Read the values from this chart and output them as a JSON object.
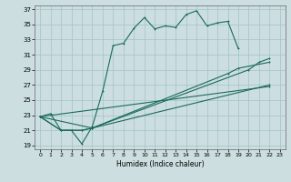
{
  "xlabel": "Humidex (Indice chaleur)",
  "xlim": [
    -0.5,
    23.5
  ],
  "ylim": [
    18.5,
    37.5
  ],
  "xticks": [
    0,
    1,
    2,
    3,
    4,
    5,
    6,
    7,
    8,
    9,
    10,
    11,
    12,
    13,
    14,
    15,
    16,
    17,
    18,
    19,
    20,
    21,
    22,
    23
  ],
  "yticks": [
    19,
    21,
    23,
    25,
    27,
    29,
    31,
    33,
    35,
    37
  ],
  "bg_color": "#ccdee0",
  "grid_color": "#a0c4c8",
  "line_color": "#1a6b5a",
  "curve1_x": [
    0,
    1,
    2,
    3,
    4,
    5,
    6,
    7,
    8,
    9,
    10,
    11,
    12,
    13,
    14,
    15,
    16,
    17,
    18,
    19
  ],
  "curve1_y": [
    22.8,
    23.2,
    21.0,
    21.0,
    19.2,
    21.5,
    26.2,
    32.2,
    32.5,
    34.5,
    35.9,
    34.4,
    34.8,
    34.6,
    36.3,
    36.8,
    34.8,
    35.2,
    35.4,
    31.8
  ],
  "curve2_x": [
    0,
    2,
    3,
    4,
    5,
    18,
    19,
    22
  ],
  "curve2_y": [
    22.8,
    21.0,
    21.0,
    21.0,
    21.3,
    28.5,
    29.2,
    30.0
  ],
  "curve3_x": [
    0,
    2,
    3,
    4,
    5,
    20,
    21,
    22
  ],
  "curve3_y": [
    22.8,
    21.0,
    21.0,
    21.0,
    21.3,
    29.0,
    30.0,
    30.5
  ],
  "curve4_x": [
    0,
    22
  ],
  "curve4_y": [
    22.8,
    26.8
  ],
  "curve5_x": [
    0,
    5,
    22
  ],
  "curve5_y": [
    22.8,
    21.3,
    27.0
  ]
}
